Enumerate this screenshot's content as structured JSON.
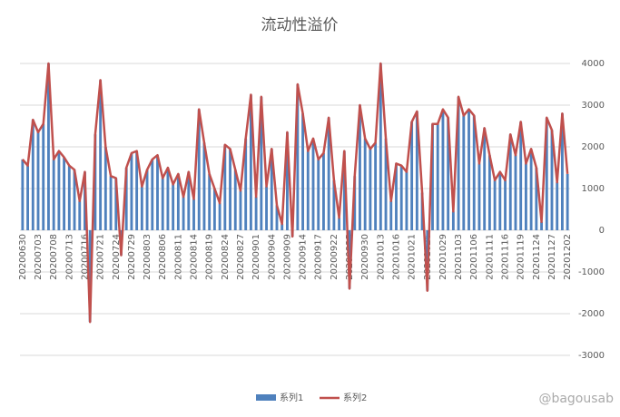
{
  "chart_data": {
    "type": "bar_line",
    "title": "流动性溢价",
    "categories": [
      "20200630",
      null,
      null,
      "20200703",
      null,
      null,
      "20200708",
      null,
      null,
      "20200713",
      null,
      null,
      "20200716",
      null,
      null,
      "20200721",
      null,
      null,
      "20200724",
      null,
      null,
      "20200729",
      null,
      null,
      "20200803",
      null,
      null,
      "20200806",
      null,
      null,
      "20200811",
      null,
      null,
      "20200814",
      null,
      null,
      "20200819",
      null,
      null,
      "20200824",
      null,
      null,
      "20200827",
      null,
      null,
      "20200901",
      null,
      null,
      "20200904",
      null,
      null,
      "20200909",
      null,
      null,
      "20200914",
      null,
      null,
      "20200917",
      null,
      null,
      "20200922",
      null,
      null,
      "20200925",
      null,
      null,
      "20200930",
      null,
      null,
      "20201013",
      null,
      null,
      "20201016",
      null,
      null,
      "20201021",
      null,
      null,
      "20201026",
      null,
      null,
      "20201029",
      null,
      null,
      "20201103",
      null,
      null,
      "20201106",
      null,
      null,
      "20201111",
      null,
      null,
      "20201116",
      null,
      null,
      "20201119",
      null,
      null,
      "20201124",
      null,
      null,
      "20201127",
      null,
      null,
      "20201202"
    ],
    "series": [
      {
        "name": "系列1",
        "color": "#4f81bd",
        "kind": "bar",
        "values": [
          1700,
          1550,
          2650,
          2350,
          2550,
          4000,
          1700,
          1900,
          1750,
          1550,
          1450,
          700,
          1400,
          -2200,
          2300,
          3600,
          2000,
          1300,
          1250,
          -600,
          1500,
          1850,
          1900,
          1050,
          1450,
          1700,
          1800,
          1250,
          1500,
          1100,
          1350,
          800,
          1400,
          750,
          2900,
          2100,
          1350,
          1000,
          650,
          2050,
          1950,
          1450,
          950,
          2200,
          3250,
          800,
          3200,
          1050,
          1950,
          600,
          150,
          2350,
          -150,
          3500,
          2800,
          1900,
          2200,
          1700,
          1850,
          2700,
          1200,
          300,
          1900,
          -1400,
          1300,
          3000,
          2200,
          1950,
          2100,
          4000,
          2200,
          700,
          1600,
          1550,
          1400,
          2600,
          2850,
          900,
          -1450,
          2550,
          2550,
          2900,
          2700,
          450,
          3200,
          2750,
          2900,
          2750,
          1600,
          2450,
          1800,
          1200,
          1400,
          1200,
          2300,
          1800,
          2600,
          1600,
          1950,
          1500,
          200,
          2700,
          2400,
          1150,
          2800,
          1350
        ]
      },
      {
        "name": "系列2",
        "color": "#c0504d",
        "kind": "line",
        "values": [
          1700,
          1550,
          2650,
          2350,
          2550,
          4000,
          1700,
          1900,
          1750,
          1550,
          1450,
          700,
          1400,
          -2200,
          2300,
          3600,
          2000,
          1300,
          1250,
          -600,
          1500,
          1850,
          1900,
          1050,
          1450,
          1700,
          1800,
          1250,
          1500,
          1100,
          1350,
          800,
          1400,
          750,
          2900,
          2100,
          1350,
          1000,
          650,
          2050,
          1950,
          1450,
          950,
          2200,
          3250,
          800,
          3200,
          1050,
          1950,
          600,
          150,
          2350,
          -150,
          3500,
          2800,
          1900,
          2200,
          1700,
          1850,
          2700,
          1200,
          300,
          1900,
          -1400,
          1300,
          3000,
          2200,
          1950,
          2100,
          4000,
          2200,
          700,
          1600,
          1550,
          1400,
          2600,
          2850,
          900,
          -1450,
          2550,
          2550,
          2900,
          2700,
          450,
          3200,
          2750,
          2900,
          2750,
          1600,
          2450,
          1800,
          1200,
          1400,
          1200,
          2300,
          1800,
          2600,
          1600,
          1950,
          1500,
          200,
          2700,
          2400,
          1150,
          2800,
          1350
        ]
      }
    ],
    "ylim": [
      -3000,
      4000
    ],
    "yticks": [
      -3000,
      -2000,
      -1000,
      0,
      1000,
      2000,
      3000,
      4000
    ],
    "y_axis_side": "right",
    "grid": true,
    "legend": "bottom",
    "watermark": "@bagousab"
  }
}
